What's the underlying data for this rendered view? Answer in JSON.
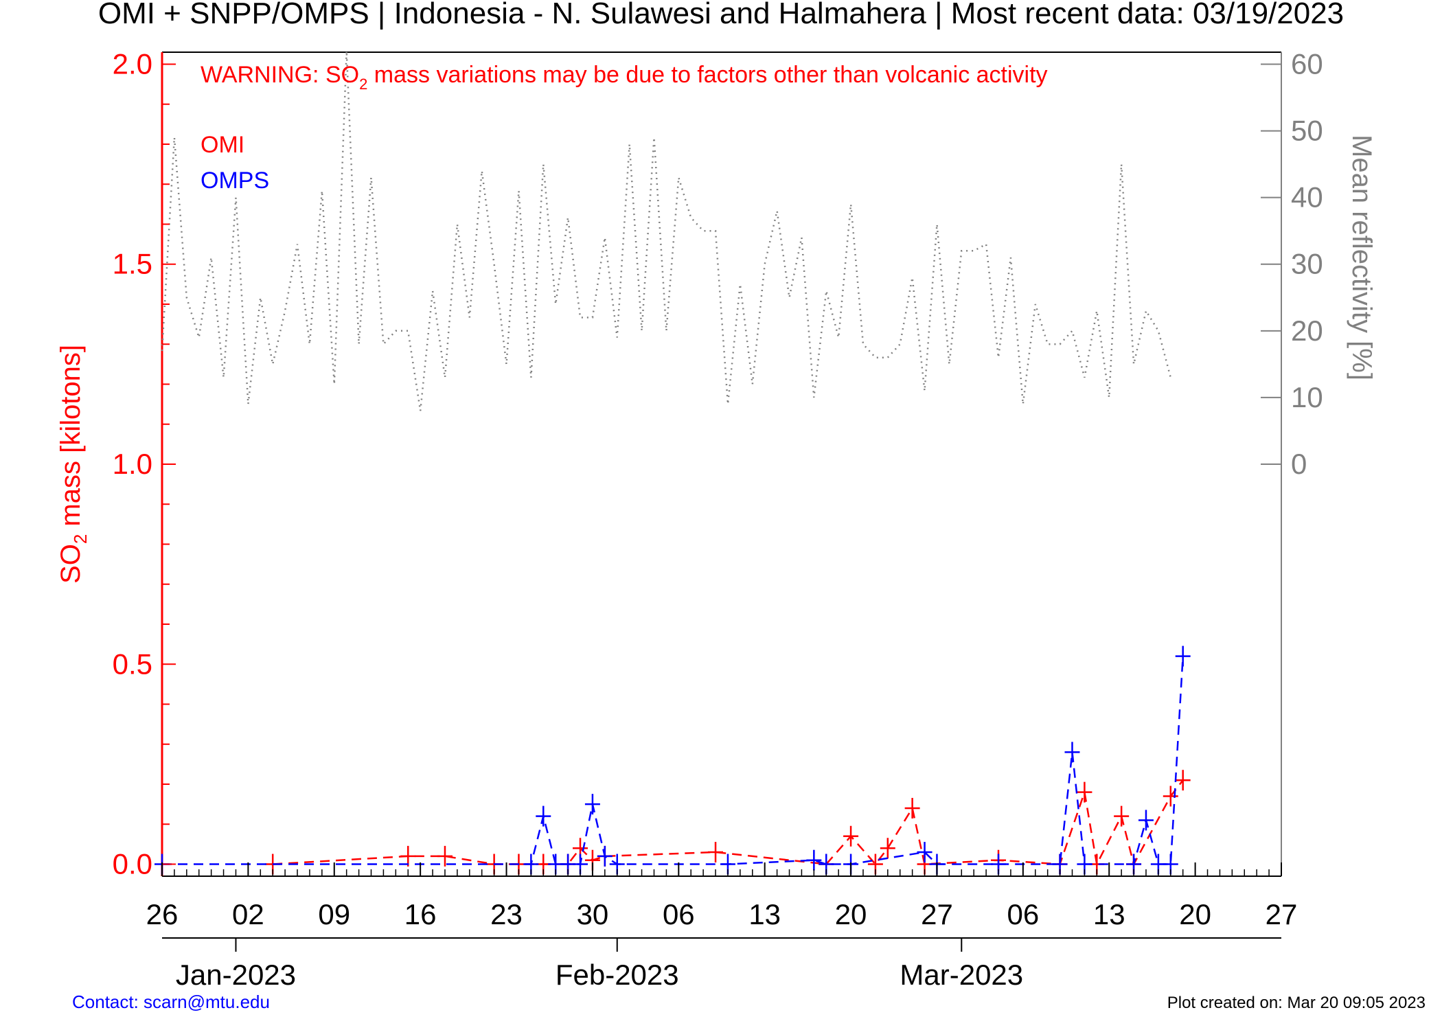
{
  "title": "OMI + SNPP/OMPS | Indonesia - N. Sulawesi and Halmahera | Most recent data: 03/19/2023",
  "warning": {
    "prefix": "WARNING: SO",
    "subscript": "2",
    "suffix": " mass variations may be due to factors other than volcanic activity"
  },
  "legend": [
    {
      "label": "OMI",
      "color": "#ff0000"
    },
    {
      "label": "OMPS",
      "color": "#0000ff"
    }
  ],
  "contact": "Contact: scarn@mtu.edu",
  "created": "Plot created on: Mar 20 09:05 2023",
  "colors": {
    "left_axis": "#ff0000",
    "right_axis": "#808080",
    "omi": "#ff0000",
    "omps": "#0000ff",
    "reflectivity": "#808080",
    "frame": "#000000",
    "contact": "#0000ff"
  },
  "chart_data": {
    "type": "line",
    "x_axis": {
      "start": "2022-12-26",
      "end": "2023-03-27",
      "tick_labels": [
        "26",
        "02",
        "09",
        "16",
        "23",
        "30",
        "06",
        "13",
        "20",
        "27",
        "06",
        "13",
        "20",
        "27"
      ],
      "month_labels": [
        "Jan-2023",
        "Feb-2023",
        "Mar-2023"
      ]
    },
    "y_left": {
      "label_prefix": "SO",
      "label_sub": "2",
      "label_suffix": " mass [kilotons]",
      "range": [
        -0.03,
        2.03
      ],
      "ticks": [
        "0.0",
        "0.5",
        "1.0",
        "1.5",
        "2.0"
      ]
    },
    "y_right": {
      "label": "Mean reflectivity [%]",
      "range": [
        0,
        60
      ],
      "ticks": [
        "0",
        "10",
        "20",
        "30",
        "40",
        "50",
        "60"
      ]
    },
    "series": [
      {
        "name": "OMI",
        "style": "dashed",
        "marker": "+",
        "points": [
          [
            "2023-01-04",
            0.0
          ],
          [
            "2023-01-15",
            0.02
          ],
          [
            "2023-01-18",
            0.02
          ],
          [
            "2023-01-22",
            0.0
          ],
          [
            "2023-01-24",
            0.0
          ],
          [
            "2023-01-26",
            0.0
          ],
          [
            "2023-01-28",
            0.0
          ],
          [
            "2023-01-29",
            0.04
          ],
          [
            "2023-01-30",
            0.01
          ],
          [
            "2023-01-31",
            0.02
          ],
          [
            "2023-02-09",
            0.03
          ],
          [
            "2023-02-18",
            0.0
          ],
          [
            "2023-02-20",
            0.07
          ],
          [
            "2023-02-22",
            0.0
          ],
          [
            "2023-02-23",
            0.04
          ],
          [
            "2023-02-25",
            0.14
          ],
          [
            "2023-02-26",
            0.0
          ],
          [
            "2023-03-04",
            0.01
          ],
          [
            "2023-03-09",
            0.0
          ],
          [
            "2023-03-11",
            0.18
          ],
          [
            "2023-03-12",
            0.0
          ],
          [
            "2023-03-14",
            0.12
          ],
          [
            "2023-03-15",
            0.0
          ],
          [
            "2023-03-18",
            0.17
          ],
          [
            "2023-03-19",
            0.21
          ]
        ]
      },
      {
        "name": "OMPS",
        "style": "dashed",
        "marker": "+",
        "points": [
          [
            "2022-12-26",
            0.0
          ],
          [
            "2023-01-25",
            0.0
          ],
          [
            "2023-01-26",
            0.12
          ],
          [
            "2023-01-27",
            0.0
          ],
          [
            "2023-01-28",
            0.0
          ],
          [
            "2023-01-29",
            0.0
          ],
          [
            "2023-01-30",
            0.15
          ],
          [
            "2023-01-31",
            0.02
          ],
          [
            "2023-02-01",
            0.0
          ],
          [
            "2023-02-10",
            0.0
          ],
          [
            "2023-02-17",
            0.01
          ],
          [
            "2023-02-18",
            0.0
          ],
          [
            "2023-02-20",
            0.0
          ],
          [
            "2023-02-26",
            0.03
          ],
          [
            "2023-02-27",
            0.0
          ],
          [
            "2023-03-04",
            0.0
          ],
          [
            "2023-03-09",
            0.0
          ],
          [
            "2023-03-10",
            0.28
          ],
          [
            "2023-03-11",
            0.0
          ],
          [
            "2023-03-15",
            0.0
          ],
          [
            "2023-03-16",
            0.11
          ],
          [
            "2023-03-17",
            0.0
          ],
          [
            "2023-03-18",
            0.0
          ],
          [
            "2023-03-19",
            0.52
          ]
        ]
      },
      {
        "name": "Mean reflectivity",
        "axis": "right",
        "style": "dotted",
        "points": [
          [
            "2022-12-26",
            17
          ],
          [
            "2022-12-27",
            49
          ],
          [
            "2022-12-28",
            25
          ],
          [
            "2022-12-29",
            19
          ],
          [
            "2022-12-30",
            31
          ],
          [
            "2022-12-31",
            13
          ],
          [
            "2023-01-01",
            40
          ],
          [
            "2023-01-02",
            9
          ],
          [
            "2023-01-03",
            25
          ],
          [
            "2023-01-04",
            15
          ],
          [
            "2023-01-05",
            23
          ],
          [
            "2023-01-06",
            33
          ],
          [
            "2023-01-07",
            18
          ],
          [
            "2023-01-08",
            41
          ],
          [
            "2023-01-09",
            12
          ],
          [
            "2023-01-10",
            62
          ],
          [
            "2023-01-11",
            18
          ],
          [
            "2023-01-12",
            43
          ],
          [
            "2023-01-13",
            18
          ],
          [
            "2023-01-14",
            20
          ],
          [
            "2023-01-15",
            20
          ],
          [
            "2023-01-16",
            8
          ],
          [
            "2023-01-17",
            26
          ],
          [
            "2023-01-18",
            13
          ],
          [
            "2023-01-19",
            36
          ],
          [
            "2023-01-20",
            22
          ],
          [
            "2023-01-21",
            44
          ],
          [
            "2023-01-22",
            30
          ],
          [
            "2023-01-23",
            15
          ],
          [
            "2023-01-24",
            41
          ],
          [
            "2023-01-25",
            13
          ],
          [
            "2023-01-26",
            45
          ],
          [
            "2023-01-27",
            24
          ],
          [
            "2023-01-28",
            37
          ],
          [
            "2023-01-29",
            22
          ],
          [
            "2023-01-30",
            22
          ],
          [
            "2023-01-31",
            34
          ],
          [
            "2023-02-01",
            19
          ],
          [
            "2023-02-02",
            48
          ],
          [
            "2023-02-03",
            20
          ],
          [
            "2023-02-04",
            49
          ],
          [
            "2023-02-05",
            20
          ],
          [
            "2023-02-06",
            43
          ],
          [
            "2023-02-07",
            37
          ],
          [
            "2023-02-08",
            35
          ],
          [
            "2023-02-09",
            35
          ],
          [
            "2023-02-10",
            9
          ],
          [
            "2023-02-11",
            27
          ],
          [
            "2023-02-12",
            12
          ],
          [
            "2023-02-13",
            30
          ],
          [
            "2023-02-14",
            38
          ],
          [
            "2023-02-15",
            25
          ],
          [
            "2023-02-16",
            34
          ],
          [
            "2023-02-17",
            10
          ],
          [
            "2023-02-18",
            26
          ],
          [
            "2023-02-19",
            19
          ],
          [
            "2023-02-20",
            39
          ],
          [
            "2023-02-21",
            18
          ],
          [
            "2023-02-22",
            16
          ],
          [
            "2023-02-23",
            16
          ],
          [
            "2023-02-24",
            18
          ],
          [
            "2023-02-25",
            28
          ],
          [
            "2023-02-26",
            11
          ],
          [
            "2023-02-27",
            36
          ],
          [
            "2023-02-28",
            15
          ],
          [
            "2023-03-01",
            32
          ],
          [
            "2023-03-02",
            32
          ],
          [
            "2023-03-03",
            33
          ],
          [
            "2023-03-04",
            16
          ],
          [
            "2023-03-05",
            31
          ],
          [
            "2023-03-06",
            9
          ],
          [
            "2023-03-07",
            24
          ],
          [
            "2023-03-08",
            18
          ],
          [
            "2023-03-09",
            18
          ],
          [
            "2023-03-10",
            20
          ],
          [
            "2023-03-11",
            13
          ],
          [
            "2023-03-12",
            23
          ],
          [
            "2023-03-13",
            10
          ],
          [
            "2023-03-14",
            45
          ],
          [
            "2023-03-15",
            15
          ],
          [
            "2023-03-16",
            23
          ],
          [
            "2023-03-17",
            20
          ],
          [
            "2023-03-18",
            13
          ]
        ]
      }
    ],
    "grid": false,
    "legend_position": "top-left"
  }
}
